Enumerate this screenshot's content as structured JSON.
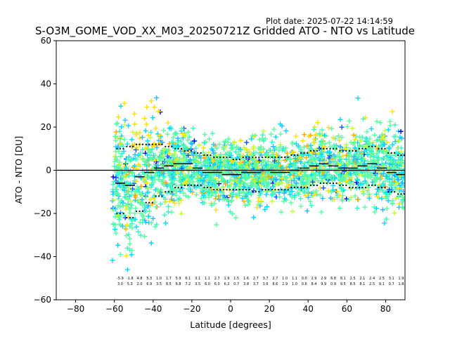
{
  "header": {
    "plot_date": "Plot date: 2025-07-22 14:14:59",
    "title": "S-O3M_GOME_VOD_XX_M03_20250721Z Gridded ATO - NTO vs Latitude"
  },
  "chart_data": {
    "type": "scatter",
    "title": "S-O3M_GOME_VOD_XX_M03_20250721Z Gridded ATO - NTO vs Latitude",
    "xlabel": "Latitude [degrees]",
    "ylabel": "ATO - NTO [DU]",
    "xlim": [
      -90,
      90
    ],
    "ylim": [
      -60,
      60
    ],
    "x_ticks": [
      -80,
      -60,
      -40,
      -20,
      0,
      20,
      40,
      60,
      80
    ],
    "y_ticks": [
      -60,
      -40,
      -20,
      0,
      20,
      40,
      60
    ],
    "x_tick_labels": [
      "−80",
      "−60",
      "−40",
      "−20",
      "0",
      "20",
      "40",
      "60",
      "80"
    ],
    "y_tick_labels": [
      "−60",
      "−40",
      "−20",
      "0",
      "20",
      "40",
      "60"
    ],
    "grid": false,
    "zero_line": 0,
    "marker": "+",
    "point_colors": [
      "#5bff9f",
      "#3bf5c4",
      "#00d9ff",
      "#2bb6ff",
      "#ffe000",
      "#c0ff3a",
      "#ffa500",
      "#1050ff",
      "#0000cc"
    ],
    "bin_centers": [
      -57,
      -52,
      -47,
      -42,
      -37,
      -32,
      -27,
      -22,
      -17,
      -12,
      -7,
      -2,
      3,
      8,
      13,
      18,
      23,
      28,
      33,
      38,
      43,
      48,
      53,
      58,
      63,
      68,
      73,
      78,
      83,
      88
    ],
    "bin_mean": [
      -6,
      -7,
      -3,
      -1,
      1,
      2,
      3,
      3,
      1,
      -1,
      -1,
      -2,
      -2,
      -1,
      -1,
      0,
      -1,
      -1,
      0,
      1,
      2,
      3,
      2,
      1,
      1,
      2,
      3,
      1,
      -1,
      -2
    ],
    "bin_upper": [
      10,
      11,
      12,
      12,
      12,
      11,
      10,
      9,
      8,
      7,
      6,
      6,
      5,
      6,
      6,
      6,
      6,
      6,
      7,
      8,
      9,
      10,
      10,
      9,
      9,
      10,
      11,
      10,
      8,
      7
    ],
    "bin_lower": [
      -20,
      -22,
      -19,
      -15,
      -12,
      -10,
      -8,
      -7,
      -7,
      -8,
      -9,
      -9,
      -9,
      -9,
      -10,
      -9,
      -9,
      -9,
      -8,
      -8,
      -7,
      -6,
      -6,
      -7,
      -8,
      -8,
      -7,
      -8,
      -10,
      -11
    ],
    "bin_stats_upper": [
      "-5.9",
      "-1.8",
      "4.8",
      "5.3",
      "1.0",
      "1.7",
      "5.9",
      "6.1",
      "3.1",
      "1.1",
      "2.7",
      "1.9",
      "1.5",
      "1.6",
      "2.7",
      "3.7",
      "2.7",
      "1.0",
      "1.1",
      "0.0",
      "2.9",
      "2.9",
      "6.8",
      "8.1",
      "2.5",
      "2.1",
      "2.4",
      "2.5",
      "3.1",
      "1.9"
    ],
    "bin_stats_lower": [
      "3.0",
      "5.3",
      "2.0",
      "6.9",
      "3.5",
      "8.5",
      "6.8",
      "7.2",
      "3.5",
      "6.0",
      "6.0",
      "6.2",
      "0.7",
      "3.8",
      "3.7",
      "3.6",
      "8.6",
      "2.9",
      "1.0",
      "0.6",
      "8.4",
      "9.9",
      "0.9",
      "9.5",
      "8.5",
      "8.1",
      "2.5",
      "9.1",
      "0.7",
      "1.8"
    ]
  }
}
